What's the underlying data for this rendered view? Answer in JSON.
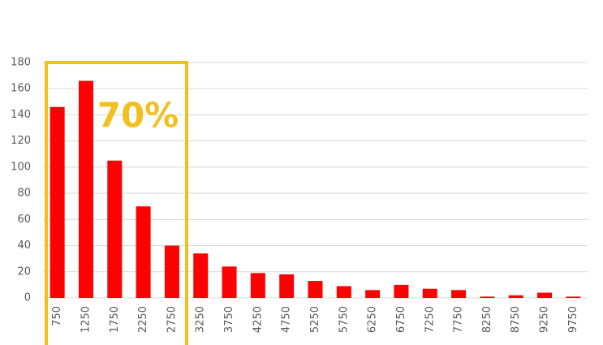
{
  "chart_data": {
    "type": "bar",
    "categories": [
      "750",
      "1250",
      "1750",
      "2250",
      "2750",
      "3250",
      "3750",
      "4250",
      "4750",
      "5250",
      "5750",
      "6250",
      "6750",
      "7250",
      "7750",
      "8250",
      "8750",
      "9250",
      "9750"
    ],
    "values": [
      146,
      166,
      105,
      70,
      40,
      34,
      24,
      19,
      18,
      13,
      9,
      6,
      10,
      7,
      6,
      1,
      2,
      4,
      1
    ],
    "color": "#ff0000",
    "ylim": [
      0,
      180
    ],
    "yticks": [
      0,
      20,
      40,
      60,
      80,
      100,
      120,
      140,
      160,
      180
    ],
    "grid": true,
    "annotation": "70%"
  }
}
